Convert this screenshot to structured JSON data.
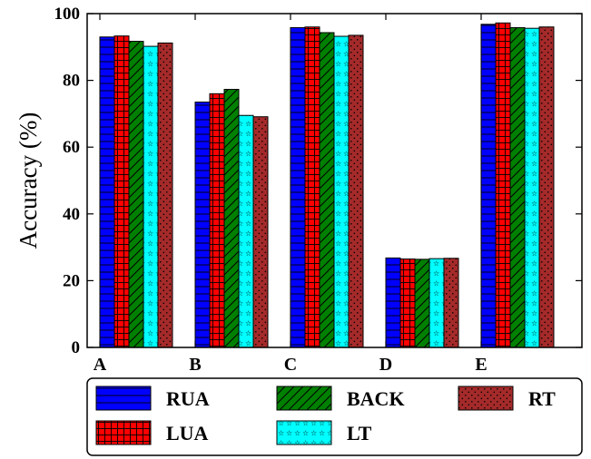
{
  "chart_data": {
    "type": "bar",
    "ylabel": "Accuracy (%)",
    "xlabel": "",
    "ylim": [
      0,
      100
    ],
    "yticks": [
      0,
      20,
      40,
      60,
      80,
      100
    ],
    "categories": [
      "A",
      "B",
      "C",
      "D",
      "E"
    ],
    "series": [
      {
        "name": "RUA",
        "color": "#0000ff",
        "hatch": "horizontal",
        "values": [
          93.0,
          73.5,
          95.8,
          26.8,
          96.8
        ]
      },
      {
        "name": "LUA",
        "color": "#ff0000",
        "hatch": "grid",
        "values": [
          93.3,
          76.0,
          96.0,
          26.5,
          97.2
        ]
      },
      {
        "name": "BACK",
        "color": "#008000",
        "hatch": "diagonal",
        "values": [
          91.7,
          77.3,
          94.3,
          26.4,
          95.8
        ]
      },
      {
        "name": "LT",
        "color": "#00ffff",
        "hatch": "stars",
        "values": [
          90.2,
          69.5,
          93.2,
          26.6,
          95.6
        ]
      },
      {
        "name": "RT",
        "color": "#a52a2a",
        "hatch": "dots",
        "values": [
          91.2,
          69.1,
          93.5,
          26.7,
          96.0
        ]
      }
    ],
    "grid": false,
    "legend_position": "bottom"
  }
}
